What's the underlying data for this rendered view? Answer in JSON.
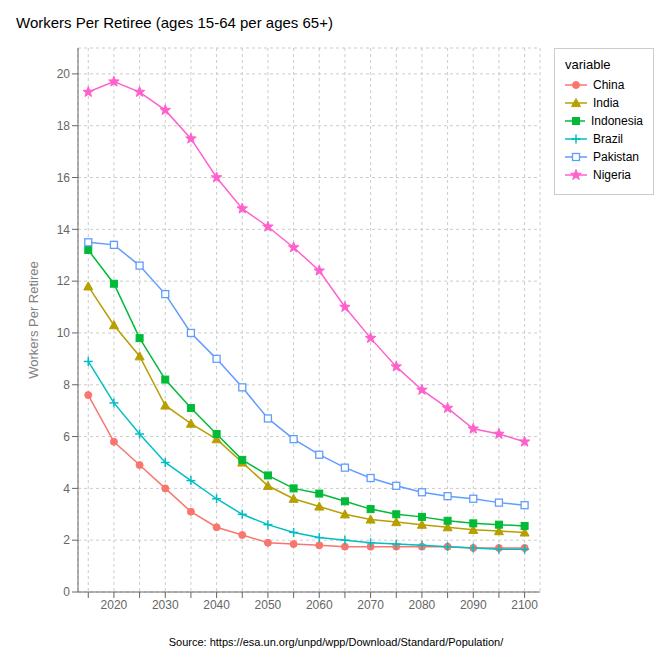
{
  "chart_data": {
    "type": "line",
    "title": "Workers Per Retiree (ages 15-64 per ages 65+)",
    "ylabel": "Workers Per Retiree",
    "source": "Source: https://esa.un.org/unpd/wpp/Download/Standard/Population/",
    "legend_title": "variable",
    "legend": "right",
    "grid": true,
    "xlim": [
      2013,
      2103
    ],
    "ylim": [
      0,
      21
    ],
    "yticks": [
      0,
      2,
      4,
      6,
      8,
      10,
      12,
      14,
      16,
      18,
      20
    ],
    "xticks": [
      {
        "value": 2015,
        "label": ""
      },
      2020,
      {
        "value": 2025,
        "label": ""
      },
      2030,
      {
        "value": 2035,
        "label": ""
      },
      2040,
      {
        "value": 2045,
        "label": ""
      },
      2050,
      {
        "value": 2055,
        "label": ""
      },
      2060,
      {
        "value": 2065,
        "label": ""
      },
      2070,
      {
        "value": 2075,
        "label": ""
      },
      2080,
      {
        "value": 2085,
        "label": ""
      },
      2090,
      {
        "value": 2095,
        "label": ""
      },
      2100
    ],
    "x": [
      2015,
      2020,
      2025,
      2030,
      2035,
      2040,
      2045,
      2050,
      2055,
      2060,
      2065,
      2070,
      2075,
      2080,
      2085,
      2090,
      2095,
      2100
    ],
    "series": [
      {
        "name": "China",
        "color": "#F8766D",
        "marker": "circle",
        "values": [
          7.6,
          5.8,
          4.9,
          4.0,
          3.1,
          2.5,
          2.2,
          1.9,
          1.85,
          1.8,
          1.75,
          1.75,
          1.75,
          1.75,
          1.75,
          1.7,
          1.7,
          1.7
        ]
      },
      {
        "name": "India",
        "color": "#B79F00",
        "marker": "triangle",
        "values": [
          11.8,
          10.3,
          9.1,
          7.2,
          6.5,
          5.9,
          5.0,
          4.1,
          3.6,
          3.3,
          3.0,
          2.8,
          2.7,
          2.6,
          2.5,
          2.4,
          2.35,
          2.3
        ]
      },
      {
        "name": "Indonesia",
        "color": "#00BA38",
        "marker": "square",
        "values": [
          13.2,
          11.9,
          9.8,
          8.2,
          7.1,
          6.1,
          5.1,
          4.5,
          4.0,
          3.8,
          3.5,
          3.2,
          3.0,
          2.9,
          2.75,
          2.65,
          2.6,
          2.55
        ]
      },
      {
        "name": "Brazil",
        "color": "#00BFC4",
        "marker": "plus",
        "values": [
          8.9,
          7.3,
          6.1,
          5.0,
          4.3,
          3.6,
          3.0,
          2.6,
          2.3,
          2.1,
          2.0,
          1.9,
          1.85,
          1.8,
          1.75,
          1.7,
          1.65,
          1.65
        ]
      },
      {
        "name": "Pakistan",
        "color": "#619CFF",
        "marker": "open_square",
        "values": [
          13.5,
          13.4,
          12.6,
          11.5,
          10.0,
          9.0,
          7.9,
          6.7,
          5.9,
          5.3,
          4.8,
          4.4,
          4.1,
          3.85,
          3.7,
          3.6,
          3.45,
          3.35
        ]
      },
      {
        "name": "Nigeria",
        "color": "#FF61CC",
        "marker": "star",
        "values": [
          19.3,
          19.7,
          19.3,
          18.6,
          17.5,
          16.0,
          14.8,
          14.1,
          13.3,
          12.4,
          11.0,
          9.8,
          8.7,
          7.8,
          7.1,
          6.3,
          6.1,
          5.8
        ]
      }
    ]
  }
}
